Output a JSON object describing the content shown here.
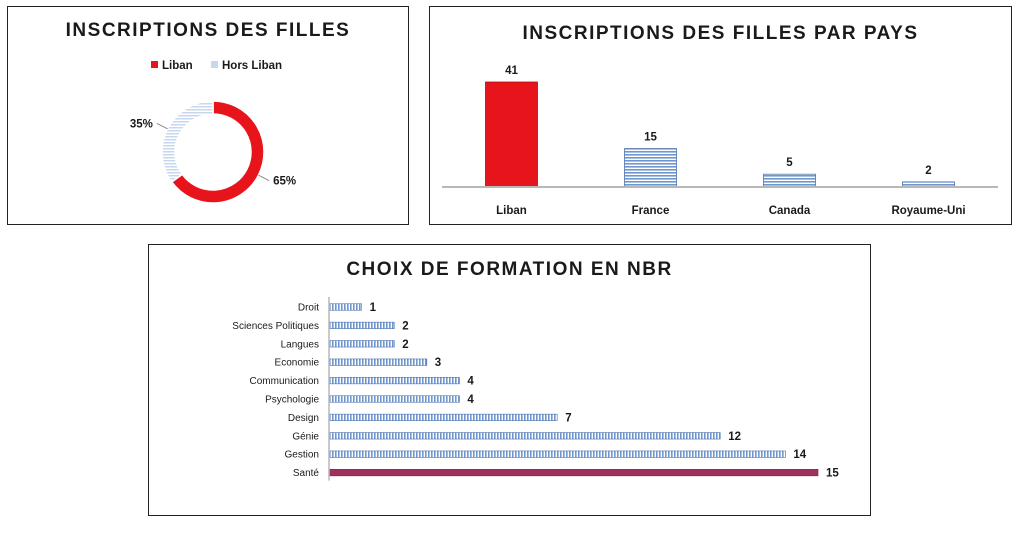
{
  "colors": {
    "red": "#e8141c",
    "blue_stripe": "#6f96cf",
    "light_stripe": "#c7d7ec",
    "maroon": "#a0305e"
  },
  "chart_data": [
    {
      "type": "pie",
      "variant": "donut",
      "title": "INSCRIPTIONS DES FILLES",
      "legend_position": "top",
      "slices": [
        {
          "name": "Liban",
          "value": 65,
          "label": "65%"
        },
        {
          "name": "Hors Liban",
          "value": 35,
          "label": "35%"
        }
      ]
    },
    {
      "type": "bar",
      "orientation": "vertical",
      "title": "INSCRIPTIONS DES FILLES PAR PAYS",
      "categories": [
        "Liban",
        "France",
        "Canada",
        "Royaume-Uni"
      ],
      "values": [
        41,
        15,
        5,
        2
      ],
      "ylim": [
        0,
        41
      ],
      "grid": false
    },
    {
      "type": "bar",
      "orientation": "horizontal",
      "title": "CHOIX DE FORMATION EN NBR",
      "categories": [
        "Droit",
        "Sciences Politiques",
        "Langues",
        "Economie",
        "Communication",
        "Psychologie",
        "Design",
        "Génie",
        "Gestion",
        "Santé"
      ],
      "values": [
        1,
        2,
        2,
        3,
        4,
        4,
        7,
        12,
        14,
        15
      ],
      "xlim": [
        0,
        15
      ],
      "grid": false
    }
  ]
}
